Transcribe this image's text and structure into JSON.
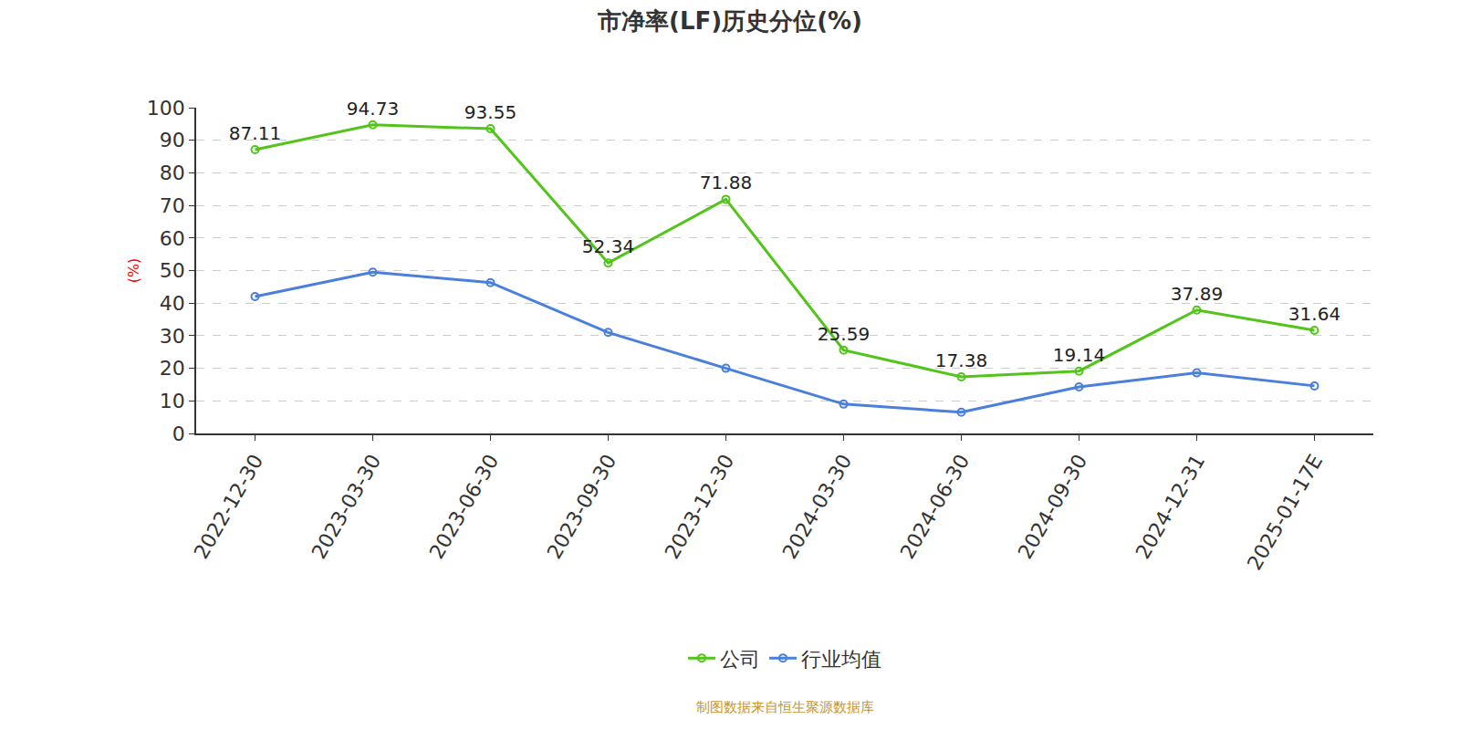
{
  "chart_data": {
    "type": "line",
    "title": "市净率(LF)历史分位(%)",
    "y_label": "(%)",
    "annotations": [
      "制图数据来自恒生聚源数据库"
    ],
    "categories": [
      "2022-12-30",
      "2023-03-30",
      "2023-06-30",
      "2023-09-30",
      "2023-12-30",
      "2024-03-30",
      "2024-06-30",
      "2024-09-30",
      "2024-12-31",
      "2025-01-17E"
    ],
    "series": [
      {
        "name": "公司",
        "color": "#52c41a",
        "marker": "circle",
        "data_labels": true,
        "values": [
          87.11,
          94.73,
          93.55,
          52.34,
          71.88,
          25.59,
          17.38,
          19.14,
          37.89,
          31.64
        ]
      },
      {
        "name": "行业均值",
        "color": "#4a7fdc",
        "marker": "circle",
        "data_labels": false,
        "values": [
          42,
          49.5,
          46.3,
          31,
          20,
          9,
          6.5,
          14.3,
          18.6,
          14.6
        ]
      }
    ],
    "ylim": [
      0,
      100
    ],
    "yticks": [
      0,
      10,
      20,
      30,
      40,
      50,
      60,
      70,
      80,
      90,
      100
    ],
    "grid": true,
    "legend": "bottom"
  }
}
